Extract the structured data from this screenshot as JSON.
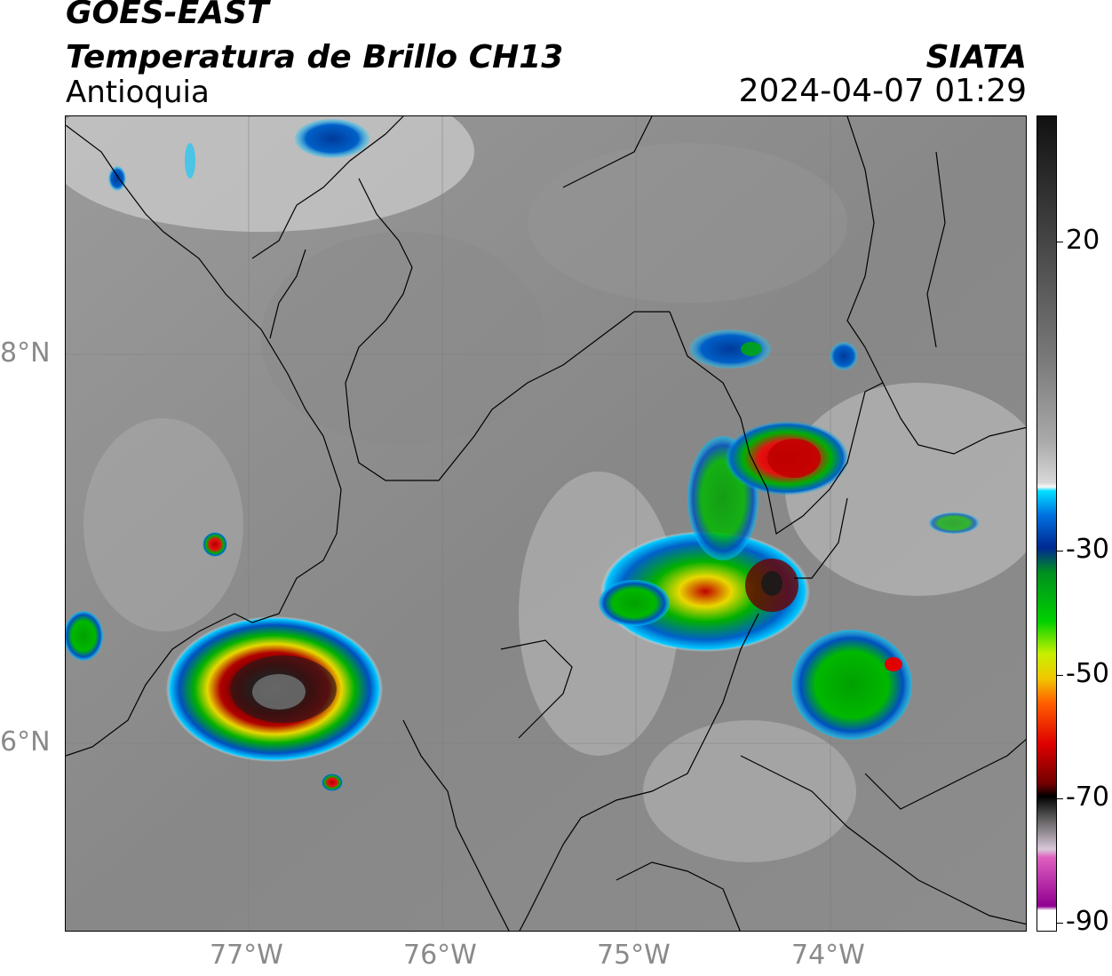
{
  "header": {
    "satellite": "GOES-EAST",
    "product": "Temperatura de Brillo CH13",
    "region": "Antioquia",
    "organization": "SIATA",
    "datetime": "2024-04-07 01:29"
  },
  "map": {
    "lon_ticks": [
      "77°W",
      "76°W",
      "75°W",
      "74°W"
    ],
    "lat_ticks": [
      "8°N",
      "6°N"
    ]
  },
  "colorbar": {
    "labels": [
      "20",
      "-30",
      "-50",
      "-70",
      "-90"
    ]
  },
  "colors": {
    "frame": "#000000",
    "tick_label": "#8a8a8a"
  }
}
